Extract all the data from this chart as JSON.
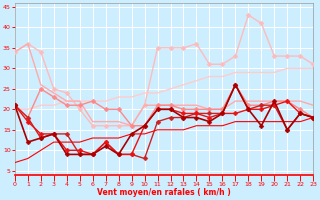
{
  "xlabel": "Vent moyen/en rafales ( km/h )",
  "bg_color": "#cceeff",
  "grid_color": "#ffffff",
  "x": [
    0,
    1,
    2,
    3,
    4,
    5,
    6,
    7,
    8,
    9,
    10,
    11,
    12,
    13,
    14,
    15,
    16,
    17,
    18,
    19,
    20,
    21,
    22,
    23
  ],
  "series": [
    {
      "y": [
        34,
        36,
        34,
        25,
        24,
        20,
        16,
        16,
        16,
        16,
        21,
        35,
        35,
        35,
        36,
        31,
        31,
        33,
        43,
        41,
        33,
        33,
        33,
        31
      ],
      "color": "#ffbbbb",
      "lw": 1.0,
      "marker": "D",
      "ms": 2.5
    },
    {
      "y": [
        20,
        20,
        21,
        21,
        22,
        22,
        22,
        22,
        23,
        23,
        24,
        24,
        25,
        26,
        27,
        28,
        28,
        29,
        29,
        29,
        29,
        30,
        30,
        30
      ],
      "color": "#ffcccc",
      "lw": 1.0,
      "marker": null
    },
    {
      "y": [
        34,
        36,
        26,
        24,
        22,
        22,
        17,
        17,
        17,
        16,
        21,
        21,
        21,
        21,
        21,
        20,
        20,
        22,
        22,
        22,
        22,
        22,
        22,
        21
      ],
      "color": "#ffaaaa",
      "lw": 1.0,
      "marker": null
    },
    {
      "y": [
        21,
        18,
        25,
        23,
        21,
        21,
        22,
        20,
        20,
        16,
        16,
        21,
        21,
        20,
        20,
        20,
        20,
        26,
        21,
        21,
        22,
        22,
        20,
        18
      ],
      "color": "#ff8888",
      "lw": 1.0,
      "marker": "D",
      "ms": 2.5
    },
    {
      "y": [
        21,
        18,
        13,
        14,
        14,
        9,
        9,
        12,
        9,
        9,
        8,
        17,
        18,
        18,
        19,
        19,
        19,
        26,
        20,
        21,
        21,
        15,
        19,
        18
      ],
      "color": "#cc2222",
      "lw": 1.0,
      "marker": "D",
      "ms": 2.5
    },
    {
      "y": [
        21,
        17,
        14,
        14,
        10,
        10,
        9,
        12,
        9,
        9,
        16,
        20,
        20,
        19,
        19,
        18,
        19,
        19,
        20,
        20,
        21,
        22,
        19,
        18
      ],
      "color": "#ee1111",
      "lw": 1.0,
      "marker": "D",
      "ms": 2.5
    },
    {
      "y": [
        7,
        8,
        10,
        12,
        12,
        12,
        13,
        13,
        13,
        14,
        14,
        15,
        15,
        15,
        16,
        16,
        16,
        17,
        17,
        17,
        17,
        17,
        17,
        18
      ],
      "color": "#ff0000",
      "lw": 0.8,
      "marker": null
    },
    {
      "y": [
        21,
        12,
        13,
        14,
        9,
        9,
        9,
        11,
        9,
        14,
        16,
        20,
        20,
        18,
        18,
        17,
        19,
        26,
        20,
        16,
        22,
        15,
        19,
        18
      ],
      "color": "#aa0000",
      "lw": 1.2,
      "marker": "D",
      "ms": 2.5
    }
  ],
  "xlim": [
    0,
    23
  ],
  "ylim": [
    4,
    46
  ],
  "yticks": [
    5,
    10,
    15,
    20,
    25,
    30,
    35,
    40,
    45
  ],
  "xticks": [
    0,
    1,
    2,
    3,
    4,
    5,
    6,
    7,
    8,
    9,
    10,
    11,
    12,
    13,
    14,
    15,
    16,
    17,
    18,
    19,
    20,
    21,
    22,
    23
  ]
}
